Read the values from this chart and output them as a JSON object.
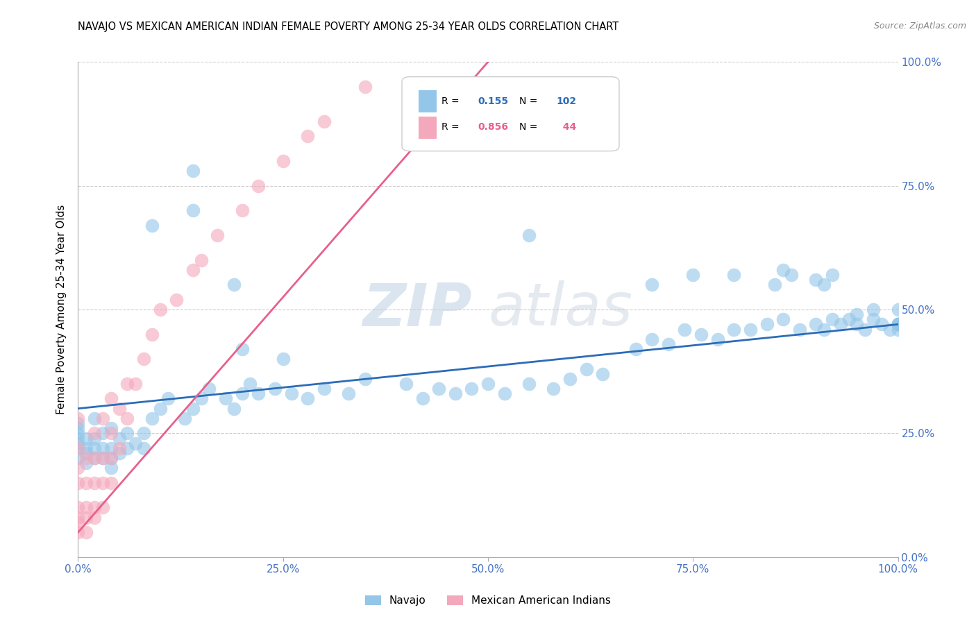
{
  "title": "NAVAJO VS MEXICAN AMERICAN INDIAN FEMALE POVERTY AMONG 25-34 YEAR OLDS CORRELATION CHART",
  "source": "Source: ZipAtlas.com",
  "ylabel": "Female Poverty Among 25-34 Year Olds",
  "xlim": [
    0,
    1
  ],
  "ylim": [
    0,
    1
  ],
  "xticks": [
    0,
    0.25,
    0.5,
    0.75,
    1.0
  ],
  "yticks": [
    0,
    0.25,
    0.5,
    0.75,
    1.0
  ],
  "xtick_labels": [
    "0.0%",
    "25.0%",
    "50.0%",
    "75.0%",
    "100.0%"
  ],
  "ytick_labels": [
    "0.0%",
    "25.0%",
    "50.0%",
    "75.0%",
    "100.0%"
  ],
  "navajo_color": "#93C6E8",
  "mexican_color": "#F4A8BC",
  "navajo_R": 0.155,
  "navajo_N": 102,
  "mexican_R": 0.856,
  "mexican_N": 44,
  "navajo_line_color": "#2B6CB8",
  "mexican_line_color": "#E8608A",
  "background_color": "#FFFFFF",
  "grid_color": "#CCCCCC",
  "watermark_zip": "ZIP",
  "watermark_atlas": "atlas",
  "title_fontsize": 10.5,
  "navajo_x": [
    0.0,
    0.0,
    0.0,
    0.0,
    0.0,
    0.0,
    0.0,
    0.01,
    0.01,
    0.01,
    0.01,
    0.02,
    0.02,
    0.02,
    0.02,
    0.03,
    0.03,
    0.03,
    0.04,
    0.04,
    0.04,
    0.04,
    0.05,
    0.05,
    0.06,
    0.06,
    0.07,
    0.08,
    0.08,
    0.09,
    0.1,
    0.11,
    0.13,
    0.14,
    0.15,
    0.16,
    0.18,
    0.19,
    0.2,
    0.21,
    0.22,
    0.24,
    0.26,
    0.28,
    0.3,
    0.33,
    0.35,
    0.4,
    0.42,
    0.44,
    0.46,
    0.48,
    0.5,
    0.52,
    0.55,
    0.58,
    0.6,
    0.62,
    0.64,
    0.68,
    0.7,
    0.72,
    0.74,
    0.76,
    0.78,
    0.8,
    0.82,
    0.84,
    0.86,
    0.88,
    0.9,
    0.91,
    0.92,
    0.93,
    0.94,
    0.95,
    0.96,
    0.97,
    0.98,
    0.99,
    1.0,
    1.0,
    0.09,
    0.14,
    0.19,
    0.55,
    0.14,
    0.2,
    0.25,
    0.7,
    0.75,
    0.8,
    0.85,
    0.86,
    0.87,
    0.9,
    0.91,
    0.92,
    0.95,
    0.97,
    1.0,
    1.0,
    1.0,
    1.0
  ],
  "navajo_y": [
    0.2,
    0.22,
    0.23,
    0.24,
    0.25,
    0.26,
    0.27,
    0.19,
    0.21,
    0.22,
    0.24,
    0.2,
    0.22,
    0.24,
    0.28,
    0.2,
    0.22,
    0.25,
    0.18,
    0.2,
    0.22,
    0.26,
    0.21,
    0.24,
    0.22,
    0.25,
    0.23,
    0.22,
    0.25,
    0.28,
    0.3,
    0.32,
    0.28,
    0.3,
    0.32,
    0.34,
    0.32,
    0.3,
    0.33,
    0.35,
    0.33,
    0.34,
    0.33,
    0.32,
    0.34,
    0.33,
    0.36,
    0.35,
    0.32,
    0.34,
    0.33,
    0.34,
    0.35,
    0.33,
    0.35,
    0.34,
    0.36,
    0.38,
    0.37,
    0.42,
    0.44,
    0.43,
    0.46,
    0.45,
    0.44,
    0.46,
    0.46,
    0.47,
    0.48,
    0.46,
    0.47,
    0.46,
    0.48,
    0.47,
    0.48,
    0.47,
    0.46,
    0.48,
    0.47,
    0.46,
    0.47,
    0.46,
    0.67,
    0.7,
    0.55,
    0.65,
    0.78,
    0.42,
    0.4,
    0.55,
    0.57,
    0.57,
    0.55,
    0.58,
    0.57,
    0.56,
    0.55,
    0.57,
    0.49,
    0.5,
    0.5,
    0.47,
    0.47,
    0.47
  ],
  "mexican_x": [
    0.0,
    0.0,
    0.0,
    0.0,
    0.0,
    0.0,
    0.0,
    0.0,
    0.01,
    0.01,
    0.01,
    0.01,
    0.01,
    0.02,
    0.02,
    0.02,
    0.02,
    0.02,
    0.03,
    0.03,
    0.03,
    0.03,
    0.04,
    0.04,
    0.04,
    0.04,
    0.05,
    0.05,
    0.06,
    0.06,
    0.07,
    0.08,
    0.09,
    0.1,
    0.12,
    0.14,
    0.15,
    0.17,
    0.2,
    0.22,
    0.25,
    0.28,
    0.3,
    0.35
  ],
  "mexican_y": [
    0.05,
    0.07,
    0.08,
    0.1,
    0.15,
    0.18,
    0.22,
    0.28,
    0.05,
    0.08,
    0.1,
    0.15,
    0.2,
    0.08,
    0.1,
    0.15,
    0.2,
    0.25,
    0.1,
    0.15,
    0.2,
    0.28,
    0.15,
    0.2,
    0.25,
    0.32,
    0.22,
    0.3,
    0.28,
    0.35,
    0.35,
    0.4,
    0.45,
    0.5,
    0.52,
    0.58,
    0.6,
    0.65,
    0.7,
    0.75,
    0.8,
    0.85,
    0.88,
    0.95
  ],
  "navajo_line_x": [
    0.0,
    1.0
  ],
  "navajo_line_y": [
    0.3,
    0.47
  ],
  "mexican_line_x": [
    0.0,
    0.5
  ],
  "mexican_line_y": [
    0.05,
    1.0
  ]
}
